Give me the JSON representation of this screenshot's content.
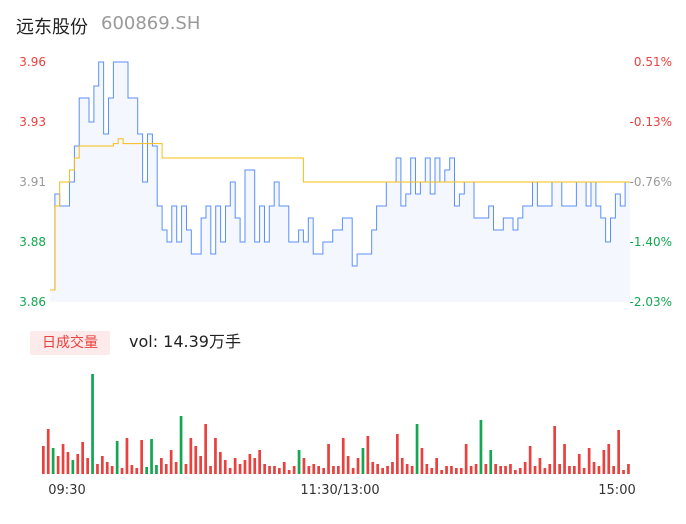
{
  "header": {
    "name": "远东股份",
    "code": "600869.SH"
  },
  "volume_panel": {
    "tag_label": "日成交量",
    "vol_label": "vol: 14.39万手"
  },
  "colors": {
    "price_line": "#5b8ff9",
    "avg_line": "#f6bd16",
    "up": "#e8413e",
    "down": "#14a651",
    "neutral": "#999999",
    "area_fill": "#f4f8fe"
  },
  "chart_data": [
    {
      "type": "line",
      "title": "",
      "x_ticks": [
        "09:30",
        "11:30/13:00",
        "15:00"
      ],
      "y_left_ticks": [
        "3.96",
        "3.93",
        "3.91",
        "3.88",
        "3.86"
      ],
      "y_right_ticks": [
        "0.51%",
        "-0.13%",
        "-0.76%",
        "-1.40%",
        "-2.03%"
      ],
      "ylim": [
        3.86,
        3.96
      ],
      "x_points": 120,
      "series": [
        {
          "role": "price",
          "values": [
            3.865,
            3.905,
            3.9,
            3.9,
            3.91,
            3.925,
            3.945,
            3.945,
            3.935,
            3.95,
            3.96,
            3.93,
            3.945,
            3.96,
            3.96,
            3.96,
            3.945,
            3.945,
            3.93,
            3.91,
            3.93,
            3.925,
            3.9,
            3.89,
            3.885,
            3.9,
            3.885,
            3.9,
            3.89,
            3.88,
            3.88,
            3.895,
            3.9,
            3.88,
            3.9,
            3.885,
            3.9,
            3.91,
            3.895,
            3.885,
            3.915,
            3.915,
            3.885,
            3.9,
            3.885,
            3.9,
            3.91,
            3.9,
            3.9,
            3.885,
            3.885,
            3.89,
            3.885,
            3.895,
            3.88,
            3.88,
            3.885,
            3.885,
            3.89,
            3.89,
            3.895,
            3.895,
            3.875,
            3.88,
            3.88,
            3.88,
            3.89,
            3.9,
            3.9,
            3.91,
            3.91,
            3.92,
            3.9,
            3.905,
            3.92,
            3.905,
            3.91,
            3.92,
            3.905,
            3.92,
            3.91,
            3.915,
            3.92,
            3.9,
            3.905,
            3.91,
            3.91,
            3.895,
            3.895,
            3.895,
            3.9,
            3.89,
            3.89,
            3.895,
            3.895,
            3.89,
            3.895,
            3.9,
            3.9,
            3.91,
            3.9,
            3.9,
            3.9,
            3.91,
            3.91,
            3.9,
            3.9,
            3.9,
            3.91,
            3.91,
            3.9,
            3.91,
            3.9,
            3.895,
            3.885,
            3.895,
            3.905,
            3.9,
            3.91,
            3.91
          ]
        },
        {
          "role": "average",
          "values": [
            3.865,
            3.9,
            3.91,
            3.91,
            3.915,
            3.92,
            3.925,
            3.925,
            3.925,
            3.925,
            3.925,
            3.925,
            3.925,
            3.926,
            3.928,
            3.926,
            3.926,
            3.926,
            3.926,
            3.926,
            3.926,
            3.926,
            3.926,
            3.92,
            3.92,
            3.92,
            3.92,
            3.92,
            3.92,
            3.92,
            3.92,
            3.92,
            3.92,
            3.92,
            3.92,
            3.92,
            3.92,
            3.92,
            3.92,
            3.92,
            3.92,
            3.92,
            3.92,
            3.92,
            3.92,
            3.92,
            3.92,
            3.92,
            3.92,
            3.92,
            3.92,
            3.92,
            3.91,
            3.91,
            3.91,
            3.91,
            3.91,
            3.91,
            3.91,
            3.91,
            3.91,
            3.91,
            3.91,
            3.91,
            3.91,
            3.91,
            3.91,
            3.91,
            3.91,
            3.91,
            3.91,
            3.91,
            3.91,
            3.91,
            3.91,
            3.91,
            3.91,
            3.91,
            3.91,
            3.91,
            3.91,
            3.91,
            3.91,
            3.91,
            3.91,
            3.91,
            3.91,
            3.91,
            3.91,
            3.91,
            3.91,
            3.91,
            3.91,
            3.91,
            3.91,
            3.91,
            3.91,
            3.91,
            3.91,
            3.91,
            3.91,
            3.91,
            3.91,
            3.91,
            3.91,
            3.91,
            3.91,
            3.91,
            3.91,
            3.91,
            3.91,
            3.91,
            3.91,
            3.91,
            3.91,
            3.91,
            3.91,
            3.91,
            3.91,
            3.91
          ]
        }
      ]
    },
    {
      "type": "bar",
      "title": "",
      "bars": [
        {
          "v": 28,
          "c": "up"
        },
        {
          "v": 45,
          "c": "up"
        },
        {
          "v": 26,
          "c": "down"
        },
        {
          "v": 18,
          "c": "up"
        },
        {
          "v": 30,
          "c": "up"
        },
        {
          "v": 22,
          "c": "up"
        },
        {
          "v": 14,
          "c": "down"
        },
        {
          "v": 20,
          "c": "up"
        },
        {
          "v": 32,
          "c": "up"
        },
        {
          "v": 16,
          "c": "up"
        },
        {
          "v": 100,
          "c": "down"
        },
        {
          "v": 10,
          "c": "up"
        },
        {
          "v": 18,
          "c": "up"
        },
        {
          "v": 12,
          "c": "up"
        },
        {
          "v": 8,
          "c": "up"
        },
        {
          "v": 33,
          "c": "down"
        },
        {
          "v": 6,
          "c": "up"
        },
        {
          "v": 36,
          "c": "up"
        },
        {
          "v": 9,
          "c": "up"
        },
        {
          "v": 6,
          "c": "up"
        },
        {
          "v": 34,
          "c": "up"
        },
        {
          "v": 7,
          "c": "down"
        },
        {
          "v": 35,
          "c": "down"
        },
        {
          "v": 9,
          "c": "down"
        },
        {
          "v": 16,
          "c": "up"
        },
        {
          "v": 10,
          "c": "up"
        },
        {
          "v": 24,
          "c": "up"
        },
        {
          "v": 12,
          "c": "up"
        },
        {
          "v": 58,
          "c": "down"
        },
        {
          "v": 10,
          "c": "up"
        },
        {
          "v": 36,
          "c": "up"
        },
        {
          "v": 28,
          "c": "up"
        },
        {
          "v": 18,
          "c": "up"
        },
        {
          "v": 50,
          "c": "up"
        },
        {
          "v": 8,
          "c": "up"
        },
        {
          "v": 36,
          "c": "up"
        },
        {
          "v": 22,
          "c": "up"
        },
        {
          "v": 14,
          "c": "up"
        },
        {
          "v": 6,
          "c": "up"
        },
        {
          "v": 16,
          "c": "up"
        },
        {
          "v": 10,
          "c": "up"
        },
        {
          "v": 14,
          "c": "up"
        },
        {
          "v": 20,
          "c": "up"
        },
        {
          "v": 16,
          "c": "up"
        },
        {
          "v": 24,
          "c": "up"
        },
        {
          "v": 10,
          "c": "up"
        },
        {
          "v": 8,
          "c": "up"
        },
        {
          "v": 8,
          "c": "up"
        },
        {
          "v": 6,
          "c": "up"
        },
        {
          "v": 12,
          "c": "up"
        },
        {
          "v": 4,
          "c": "up"
        },
        {
          "v": 8,
          "c": "up"
        },
        {
          "v": 24,
          "c": "down"
        },
        {
          "v": 16,
          "c": "up"
        },
        {
          "v": 8,
          "c": "up"
        },
        {
          "v": 10,
          "c": "up"
        },
        {
          "v": 8,
          "c": "up"
        },
        {
          "v": 6,
          "c": "up"
        },
        {
          "v": 30,
          "c": "up"
        },
        {
          "v": 8,
          "c": "up"
        },
        {
          "v": 8,
          "c": "up"
        },
        {
          "v": 36,
          "c": "up"
        },
        {
          "v": 18,
          "c": "up"
        },
        {
          "v": 6,
          "c": "up"
        },
        {
          "v": 16,
          "c": "up"
        },
        {
          "v": 26,
          "c": "down"
        },
        {
          "v": 38,
          "c": "up"
        },
        {
          "v": 12,
          "c": "up"
        },
        {
          "v": 10,
          "c": "up"
        },
        {
          "v": 6,
          "c": "up"
        },
        {
          "v": 8,
          "c": "up"
        },
        {
          "v": 12,
          "c": "up"
        },
        {
          "v": 40,
          "c": "up"
        },
        {
          "v": 16,
          "c": "up"
        },
        {
          "v": 10,
          "c": "up"
        },
        {
          "v": 8,
          "c": "up"
        },
        {
          "v": 50,
          "c": "down"
        },
        {
          "v": 26,
          "c": "up"
        },
        {
          "v": 10,
          "c": "up"
        },
        {
          "v": 6,
          "c": "up"
        },
        {
          "v": 16,
          "c": "up"
        },
        {
          "v": 4,
          "c": "up"
        },
        {
          "v": 8,
          "c": "up"
        },
        {
          "v": 8,
          "c": "up"
        },
        {
          "v": 6,
          "c": "up"
        },
        {
          "v": 6,
          "c": "up"
        },
        {
          "v": 30,
          "c": "up"
        },
        {
          "v": 8,
          "c": "up"
        },
        {
          "v": 10,
          "c": "up"
        },
        {
          "v": 54,
          "c": "down"
        },
        {
          "v": 10,
          "c": "up"
        },
        {
          "v": 24,
          "c": "down"
        },
        {
          "v": 10,
          "c": "up"
        },
        {
          "v": 8,
          "c": "up"
        },
        {
          "v": 8,
          "c": "up"
        },
        {
          "v": 10,
          "c": "up"
        },
        {
          "v": 4,
          "c": "up"
        },
        {
          "v": 6,
          "c": "up"
        },
        {
          "v": 12,
          "c": "up"
        },
        {
          "v": 28,
          "c": "up"
        },
        {
          "v": 8,
          "c": "up"
        },
        {
          "v": 16,
          "c": "up"
        },
        {
          "v": 6,
          "c": "up"
        },
        {
          "v": 10,
          "c": "up"
        },
        {
          "v": 48,
          "c": "up"
        },
        {
          "v": 10,
          "c": "up"
        },
        {
          "v": 30,
          "c": "up"
        },
        {
          "v": 8,
          "c": "up"
        },
        {
          "v": 8,
          "c": "up"
        },
        {
          "v": 20,
          "c": "up"
        },
        {
          "v": 6,
          "c": "up"
        },
        {
          "v": 26,
          "c": "up"
        },
        {
          "v": 12,
          "c": "up"
        },
        {
          "v": 8,
          "c": "up"
        },
        {
          "v": 24,
          "c": "up"
        },
        {
          "v": 30,
          "c": "up"
        },
        {
          "v": 8,
          "c": "up"
        },
        {
          "v": 44,
          "c": "up"
        },
        {
          "v": 4,
          "c": "up"
        },
        {
          "v": 10,
          "c": "up"
        }
      ]
    }
  ]
}
